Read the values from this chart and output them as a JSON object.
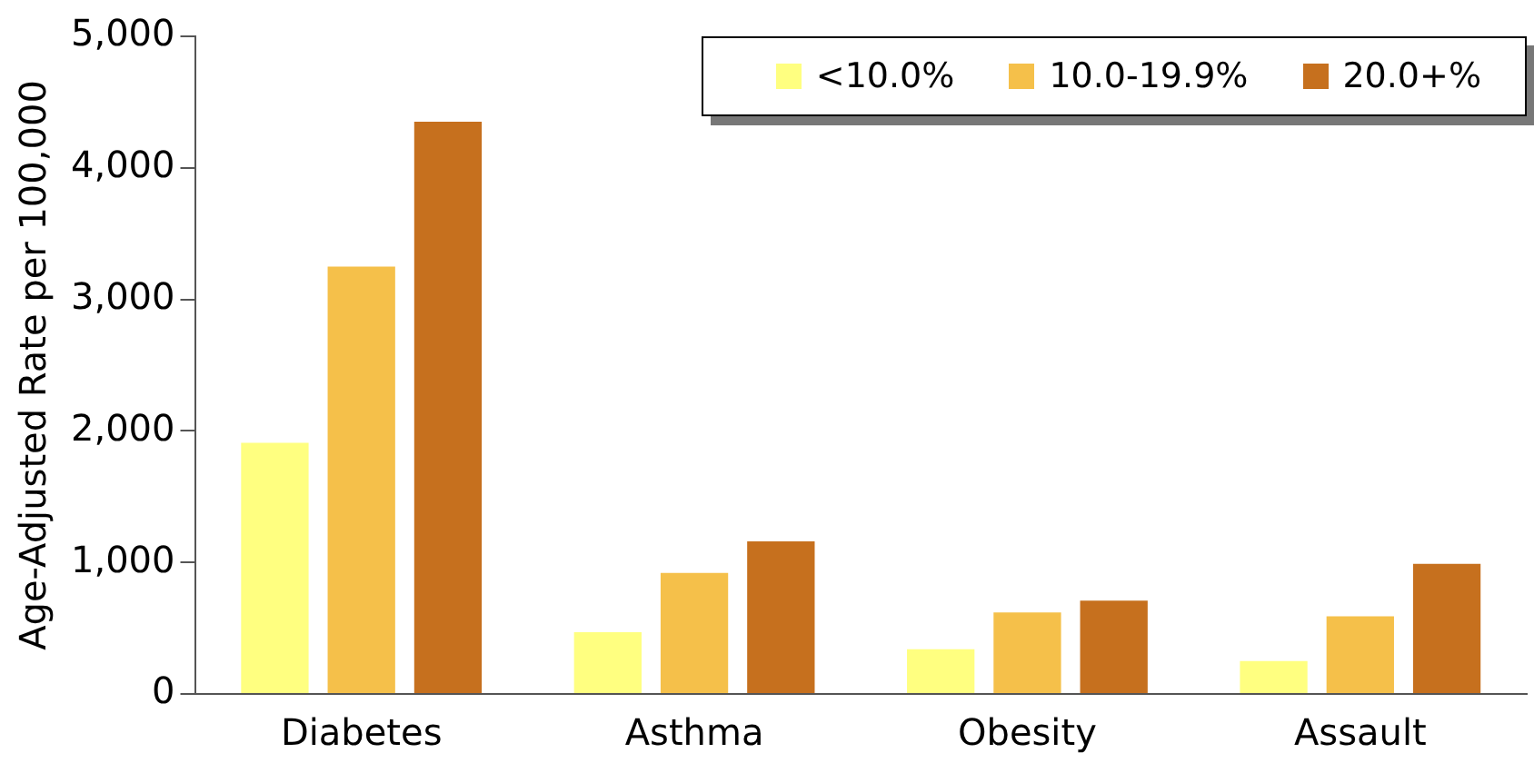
{
  "chart_data": {
    "type": "bar",
    "ylabel": "Age-Adjusted Rate per 100,000",
    "categories": [
      "Diabetes",
      "Asthma",
      "Obesity",
      "Assault"
    ],
    "series": [
      {
        "name": "<10.0%",
        "color": "#ffff80",
        "values": [
          1910,
          470,
          340,
          250
        ]
      },
      {
        "name": "10.0-19.9%",
        "color": "#f5c04a",
        "values": [
          3250,
          920,
          620,
          590
        ]
      },
      {
        "name": "20.0+%",
        "color": "#c6701e",
        "values": [
          4350,
          1160,
          710,
          990
        ]
      }
    ],
    "ylim": [
      0,
      5000
    ],
    "yticks": [
      0,
      {
        "value": 1000,
        "label": "1,000"
      },
      {
        "value": 2000,
        "label": "2,000"
      },
      {
        "value": 3000,
        "label": "3,000"
      },
      {
        "value": 4000,
        "label": "4,000"
      },
      {
        "value": 5000,
        "label": "5,000"
      }
    ],
    "grid": false,
    "legend": "top right"
  }
}
